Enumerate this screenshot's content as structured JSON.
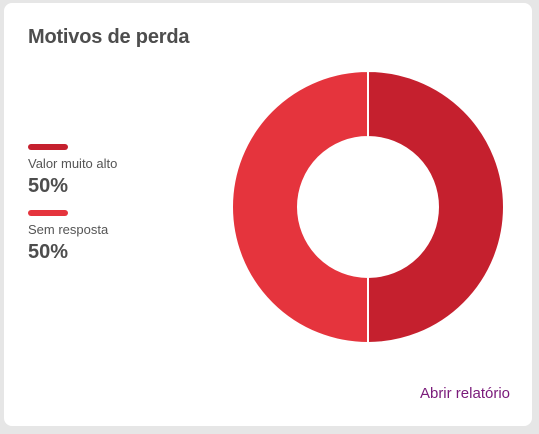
{
  "card": {
    "title": "Motivos de perda",
    "report_link": "Abrir relatório"
  },
  "chart_data": {
    "type": "pie",
    "title": "Motivos de perda",
    "donut": true,
    "slices": [
      {
        "name": "Valor muito alto",
        "value": 50,
        "label": "50%",
        "color": "#c5202e"
      },
      {
        "name": "Sem resposta",
        "value": 50,
        "label": "50%",
        "color": "#e5343d"
      }
    ]
  }
}
